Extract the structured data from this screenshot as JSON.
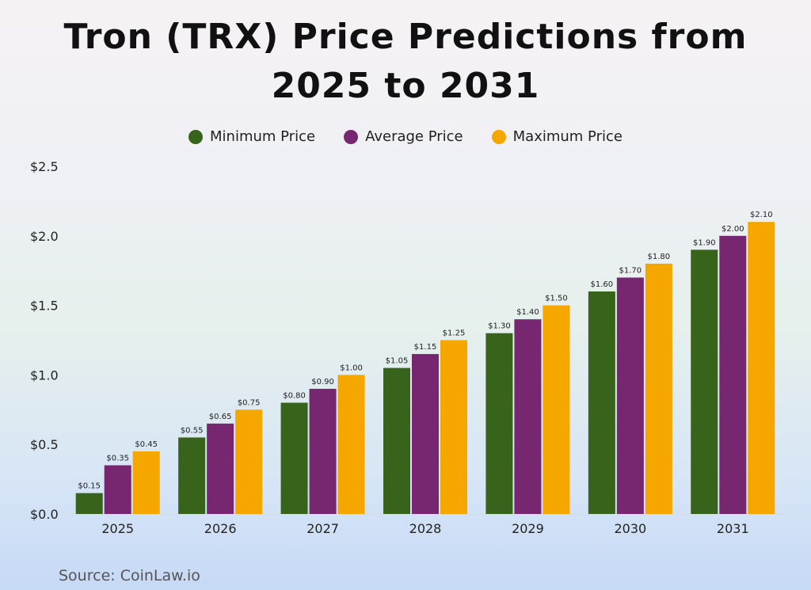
{
  "chart_data": {
    "type": "bar",
    "title": "Tron (TRX) Price Predictions from 2025 to 2031",
    "categories": [
      "2025",
      "2026",
      "2027",
      "2028",
      "2029",
      "2030",
      "2031"
    ],
    "series": [
      {
        "name": "Minimum Price",
        "color": "#38631a",
        "values": [
          0.15,
          0.55,
          0.8,
          1.05,
          1.3,
          1.6,
          1.9
        ],
        "labels": [
          "$0.15",
          "$0.55",
          "$0.80",
          "$1.05",
          "$1.30",
          "$1.60",
          "$1.90"
        ]
      },
      {
        "name": "Average Price",
        "color": "#76276f",
        "values": [
          0.35,
          0.65,
          0.9,
          1.15,
          1.4,
          1.7,
          2.0
        ],
        "labels": [
          "$0.35",
          "$0.65",
          "$0.90",
          "$1.15",
          "$1.40",
          "$1.70",
          "$2.00"
        ]
      },
      {
        "name": "Maximum Price",
        "color": "#f5a700",
        "values": [
          0.45,
          0.75,
          1.0,
          1.25,
          1.5,
          1.8,
          2.1
        ],
        "labels": [
          "$0.45",
          "$0.75",
          "$1.00",
          "$1.25",
          "$1.50",
          "$1.80",
          "$2.10"
        ]
      }
    ],
    "yticks": [
      "$0.0",
      "$0.5",
      "$1.0",
      "$1.5",
      "$2.0",
      "$2.5"
    ],
    "ylim": [
      0,
      2.5
    ],
    "xlabel": "",
    "ylabel": "",
    "legend": "top-center"
  },
  "source": "Source: CoinLaw.io"
}
